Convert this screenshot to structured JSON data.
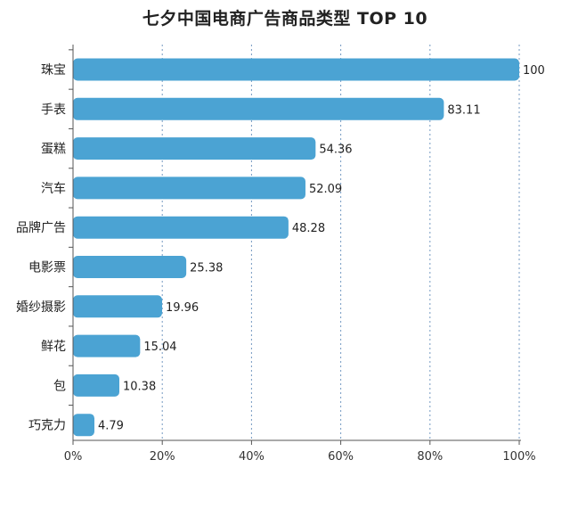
{
  "chart_data": {
    "type": "bar",
    "orientation": "horizontal",
    "title": "七夕中国电商广告商品类型 TOP 10",
    "categories": [
      "珠宝",
      "手表",
      "蛋糕",
      "汽车",
      "品牌广告",
      "电影票",
      "婚纱摄影",
      "鲜花",
      "包",
      "巧克力"
    ],
    "values": [
      100,
      83.11,
      54.36,
      52.09,
      48.28,
      25.38,
      19.96,
      15.04,
      10.38,
      4.79
    ],
    "value_labels": [
      "100",
      "83.11",
      "54.36",
      "52.09",
      "48.28",
      "25.38",
      "19.96",
      "15.04",
      "10.38",
      "4.79"
    ],
    "xlim": [
      0,
      100
    ],
    "x_ticks": [
      0,
      20,
      40,
      60,
      80,
      100
    ],
    "x_tick_labels": [
      "0%",
      "20%",
      "40%",
      "60%",
      "80%",
      "100%"
    ],
    "grid": true,
    "grid_style": "dashed-vertical",
    "bar_color": "#4ba3d3",
    "axis_color": "#555555",
    "grid_color": "#3a6fa8"
  }
}
